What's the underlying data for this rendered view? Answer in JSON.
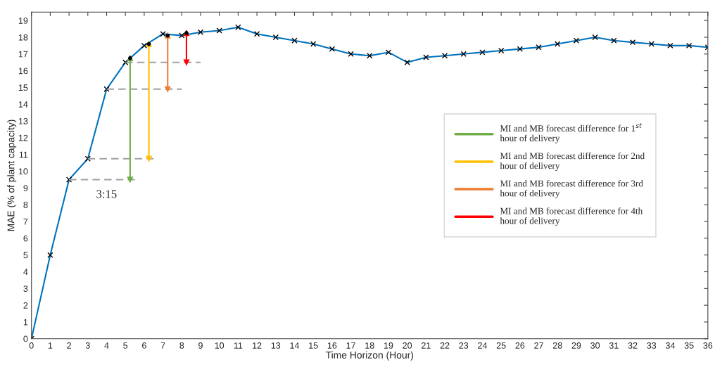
{
  "chart_data": {
    "type": "line",
    "xlabel": "Time Horizon (Hour)",
    "ylabel": "MAE (% of plant capacity)",
    "xlim": [
      0,
      36
    ],
    "ylim": [
      0,
      19.5
    ],
    "xticks": [
      0,
      1,
      2,
      3,
      4,
      5,
      6,
      7,
      8,
      9,
      10,
      11,
      12,
      13,
      14,
      15,
      16,
      17,
      18,
      19,
      20,
      21,
      22,
      23,
      24,
      25,
      26,
      27,
      28,
      29,
      30,
      31,
      32,
      33,
      34,
      35,
      36
    ],
    "yticks": [
      0,
      1,
      2,
      3,
      4,
      5,
      6,
      7,
      8,
      9,
      10,
      11,
      12,
      13,
      14,
      15,
      16,
      17,
      18,
      19
    ],
    "grid": false,
    "legend": "right",
    "series": [
      {
        "color": "#0072bd",
        "marker": "cross",
        "x": [
          0,
          1,
          2,
          3,
          4,
          5,
          6,
          7,
          8,
          9,
          10,
          11,
          12,
          13,
          14,
          15,
          16,
          17,
          18,
          19,
          20,
          21,
          22,
          23,
          24,
          25,
          26,
          27,
          28,
          29,
          30,
          31,
          32,
          33,
          34,
          35,
          36
        ],
        "values": [
          0,
          5,
          9.5,
          10.75,
          14.9,
          16.5,
          17.5,
          18.2,
          18.1,
          18.3,
          18.4,
          18.6,
          18.2,
          18.0,
          17.8,
          17.6,
          17.3,
          17.0,
          16.9,
          17.1,
          16.5,
          16.8,
          16.9,
          17.0,
          17.1,
          17.2,
          17.3,
          17.4,
          17.6,
          17.8,
          18.0,
          17.8,
          17.7,
          17.6,
          17.5,
          17.5,
          17.4
        ]
      },
      {
        "type": "scatter",
        "color": "#000000",
        "marker": "circle",
        "x": [
          5.25,
          6.25,
          7.25,
          8.25
        ],
        "values": [
          16.75,
          17.6,
          18.1,
          18.25
        ]
      },
      {
        "type": "line",
        "color": "#a0a0a0",
        "line_style": "dashed",
        "x": [
          2,
          5.5
        ],
        "values": [
          9.5,
          9.5
        ]
      },
      {
        "type": "line",
        "color": "#a0a0a0",
        "line_style": "dashed",
        "x": [
          3,
          6.5
        ],
        "values": [
          10.75,
          10.75
        ]
      },
      {
        "type": "line",
        "color": "#a0a0a0",
        "line_style": "dashed",
        "x": [
          4,
          8
        ],
        "values": [
          14.9,
          14.9
        ]
      },
      {
        "type": "line",
        "color": "#a0a0a0",
        "line_style": "dashed",
        "x": [
          5,
          9
        ],
        "values": [
          16.5,
          16.5
        ]
      },
      {
        "type": "line",
        "name": "MI and MB forecast difference for 1$^{st}$\nhour of delivery",
        "color": "#70ad47",
        "marker": "triangle",
        "x": [
          5.25,
          5.25
        ],
        "values": [
          9.5,
          16.75
        ]
      },
      {
        "type": "line",
        "name": "MI and MB forecast difference for 2nd\nhour of delivery",
        "color": "#ffc000",
        "marker": "triangle",
        "x": [
          6.25,
          6.25
        ],
        "values": [
          10.75,
          17.6
        ]
      },
      {
        "type": "line",
        "name": "MI and MB forecast difference for 3rd\nhour of delivery",
        "color": "#ed7d31",
        "marker": "triangle",
        "x": [
          7.25,
          7.25
        ],
        "values": [
          14.9,
          18.1
        ]
      },
      {
        "type": "line",
        "name": "MI and MB forecast difference for 4th\nhour of delivery",
        "color": "#ff0000",
        "marker": "triangle",
        "x": [
          8.25,
          8.25
        ],
        "values": [
          16.5,
          18.25
        ]
      }
    ],
    "annotations": [
      "3:15"
    ]
  }
}
